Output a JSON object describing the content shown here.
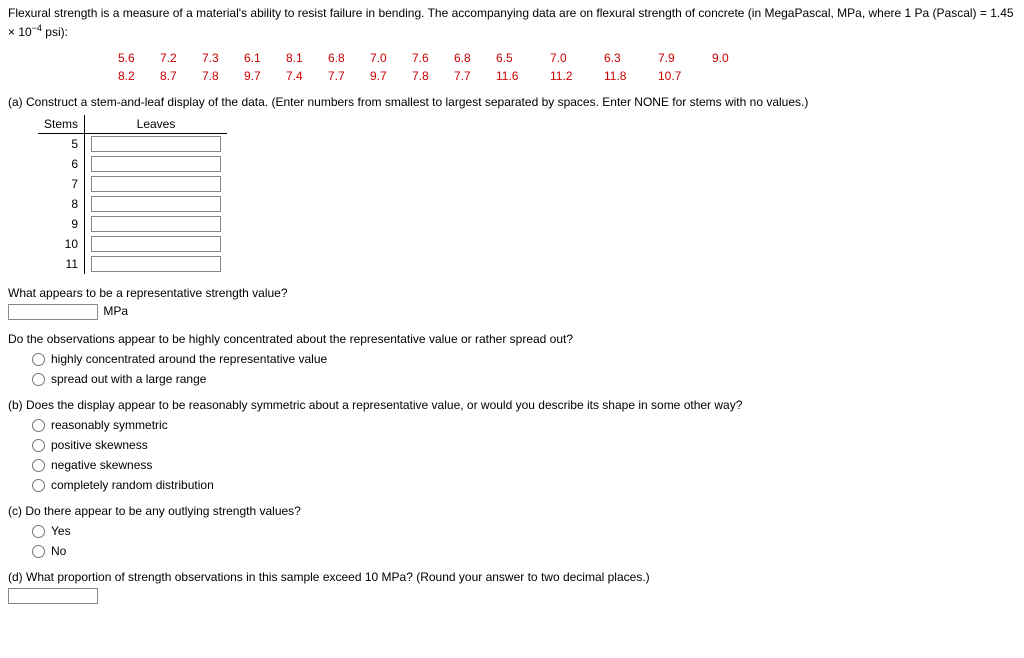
{
  "intro_text": "Flexural strength is a measure of a material's ability to resist failure in bending. The accompanying data are on flexural strength of concrete (in MegaPascal, MPa, where 1 Pa (Pascal) = 1.45 × 10⁻⁴ psi):",
  "data": {
    "row1": [
      "5.6",
      "7.2",
      "7.3",
      "6.1",
      "8.1",
      "6.8",
      "7.0",
      "7.6",
      "6.8",
      "6.5",
      "7.0",
      "6.3",
      "7.9",
      "9.0"
    ],
    "row2": [
      "8.2",
      "8.7",
      "7.8",
      "9.7",
      "7.4",
      "7.7",
      "9.7",
      "7.8",
      "7.7",
      "11.6",
      "11.2",
      "11.8",
      "10.7"
    ]
  },
  "part_a": {
    "prompt": "(a) Construct a stem-and-leaf display of the data. (Enter numbers from smallest to largest separated by spaces. Enter NONE for stems with no values.)",
    "header_stems": "Stems",
    "header_leaves": "Leaves",
    "stems": [
      "5",
      "6",
      "7",
      "8",
      "9",
      "10",
      "11"
    ],
    "rep_q": "What appears to be a representative strength value?",
    "rep_unit": "MPa",
    "spread_q": "Do the observations appear to be highly concentrated about the representative value or rather spread out?",
    "spread_opts": [
      "highly concentrated around the representative value",
      "spread out with a large range"
    ]
  },
  "part_b": {
    "prompt": "(b) Does the display appear to be reasonably symmetric about a representative value, or would you describe its shape in some other way?",
    "opts": [
      "reasonably symmetric",
      "positive skewness",
      "negative skewness",
      "completely random distribution"
    ]
  },
  "part_c": {
    "prompt": "(c) Do there appear to be any outlying strength values?",
    "opts": [
      "Yes",
      "No"
    ]
  },
  "part_d": {
    "prompt": "(d) What proportion of strength observations in this sample exceed 10 MPa? (Round your answer to two decimal places.)"
  }
}
